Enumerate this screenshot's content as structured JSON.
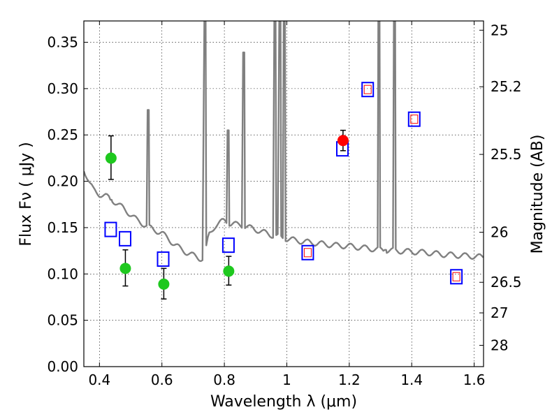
{
  "chart_data": {
    "type": "scatter",
    "xlabel": "Wavelength  λ (μm)",
    "ylabel_main": "Flux  Fν  ( μJy )",
    "ylabel_right": "Magnitude (AB)",
    "xlim": [
      0.35,
      1.63
    ],
    "ylim": [
      0.0,
      0.373
    ],
    "xticks": [
      0.4,
      0.6,
      0.8,
      1.0,
      1.2,
      1.4,
      1.6
    ],
    "xtick_labels": [
      "0.4",
      "0.6",
      "0.8",
      "1",
      "1.2",
      "1.4",
      "1.6"
    ],
    "yticks": [
      0.0,
      0.05,
      0.1,
      0.15,
      0.2,
      0.25,
      0.3,
      0.35
    ],
    "ytick_labels": [
      "0.00",
      "0.05",
      "0.10",
      "0.15",
      "0.20",
      "0.25",
      "0.30",
      "0.35"
    ],
    "right_ticks": [
      {
        "label": "25",
        "flux": 0.363
      },
      {
        "label": "25.2",
        "flux": 0.302
      },
      {
        "label": "25.5",
        "flux": 0.229
      },
      {
        "label": "26",
        "flux": 0.145
      },
      {
        "label": "26.5",
        "flux": 0.091
      },
      {
        "label": "27",
        "flux": 0.058
      },
      {
        "label": "28",
        "flux": 0.023
      }
    ],
    "grid": true,
    "colors": {
      "sed": "#808080",
      "observed_green": "#1ec81e",
      "observed_red": "#ff0000",
      "model_box": "#0000ff",
      "model_inner": "#ff0000",
      "errorbar": "#000000"
    },
    "sed_model": {
      "continuum": [
        [
          0.35,
          0.213
        ],
        [
          0.36,
          0.205
        ],
        [
          0.37,
          0.197
        ],
        [
          0.38,
          0.191
        ],
        [
          0.39,
          0.188
        ],
        [
          0.4,
          0.186
        ],
        [
          0.42,
          0.184
        ],
        [
          0.44,
          0.18
        ],
        [
          0.46,
          0.175
        ],
        [
          0.48,
          0.17
        ],
        [
          0.5,
          0.164
        ],
        [
          0.52,
          0.158
        ],
        [
          0.54,
          0.154
        ],
        [
          0.56,
          0.15
        ],
        [
          0.58,
          0.147
        ],
        [
          0.6,
          0.144
        ],
        [
          0.62,
          0.138
        ],
        [
          0.64,
          0.132
        ],
        [
          0.66,
          0.127
        ],
        [
          0.68,
          0.123
        ],
        [
          0.7,
          0.12
        ],
        [
          0.72,
          0.117
        ],
        [
          0.735,
          0.116
        ],
        [
          0.75,
          0.142
        ],
        [
          0.77,
          0.152
        ],
        [
          0.8,
          0.158
        ],
        [
          0.82,
          0.154
        ],
        [
          0.85,
          0.153
        ],
        [
          0.88,
          0.15
        ],
        [
          0.9,
          0.148
        ],
        [
          0.95,
          0.142
        ],
        [
          1.0,
          0.138
        ],
        [
          1.05,
          0.135
        ],
        [
          1.1,
          0.133
        ],
        [
          1.15,
          0.131
        ],
        [
          1.2,
          0.13
        ],
        [
          1.25,
          0.128
        ],
        [
          1.3,
          0.126
        ],
        [
          1.35,
          0.125
        ],
        [
          1.4,
          0.124
        ],
        [
          1.45,
          0.123
        ],
        [
          1.5,
          0.121
        ],
        [
          1.55,
          0.12
        ],
        [
          1.6,
          0.119
        ],
        [
          1.63,
          0.118
        ]
      ],
      "lines": [
        {
          "x": 0.437,
          "peak": 0.18
        },
        {
          "x": 0.556,
          "peak": 0.277
        },
        {
          "x": 0.738,
          "peak": 0.38
        },
        {
          "x": 0.812,
          "peak": 0.255
        },
        {
          "x": 0.862,
          "peak": 0.339
        },
        {
          "x": 0.962,
          "peak": 0.38
        },
        {
          "x": 0.978,
          "peak": 0.38
        },
        {
          "x": 0.992,
          "peak": 0.38
        },
        {
          "x": 1.295,
          "peak": 0.38
        },
        {
          "x": 1.345,
          "peak": 0.38
        }
      ],
      "dips": [
        {
          "x": 1.316,
          "depth": 0.126
        }
      ]
    },
    "observed": [
      {
        "x": 0.437,
        "y": 0.225,
        "err_lo": 0.202,
        "err_hi": 0.249,
        "color": "green"
      },
      {
        "x": 0.483,
        "y": 0.106,
        "err_lo": 0.087,
        "err_hi": 0.126,
        "color": "green"
      },
      {
        "x": 0.606,
        "y": 0.089,
        "err_lo": 0.073,
        "err_hi": 0.106,
        "color": "green"
      },
      {
        "x": 0.814,
        "y": 0.103,
        "err_lo": 0.088,
        "err_hi": 0.119,
        "color": "green"
      },
      {
        "x": 1.18,
        "y": 0.244,
        "err_lo": 0.233,
        "err_hi": 0.255,
        "color": "red"
      }
    ],
    "model_points": [
      {
        "x": 0.436,
        "y": 0.148,
        "inner": false
      },
      {
        "x": 0.482,
        "y": 0.138,
        "inner": false
      },
      {
        "x": 0.604,
        "y": 0.116,
        "inner": false
      },
      {
        "x": 0.813,
        "y": 0.131,
        "inner": false
      },
      {
        "x": 1.067,
        "y": 0.123,
        "inner": true
      },
      {
        "x": 1.178,
        "y": 0.235,
        "inner": false
      },
      {
        "x": 1.259,
        "y": 0.299,
        "inner": true
      },
      {
        "x": 1.408,
        "y": 0.267,
        "inner": true
      },
      {
        "x": 1.543,
        "y": 0.097,
        "inner": true
      }
    ]
  }
}
